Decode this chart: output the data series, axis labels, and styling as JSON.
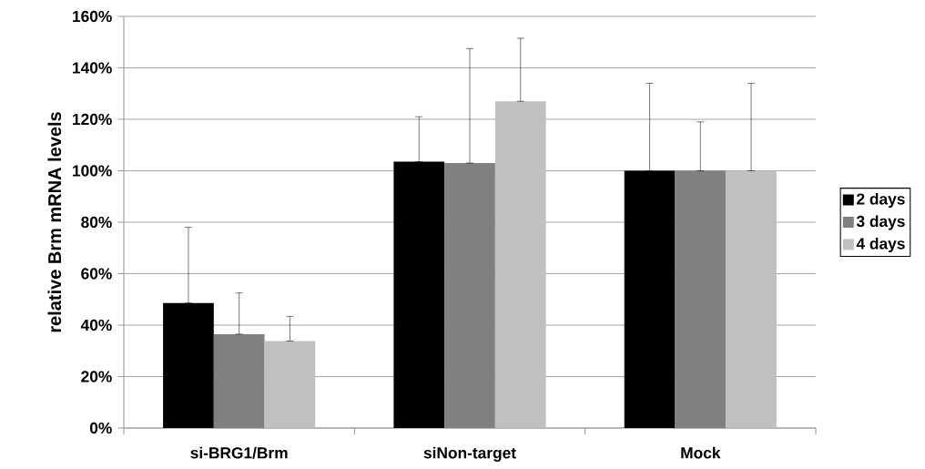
{
  "chart_data": {
    "type": "bar",
    "ylabel": "relative Brm mRNA levels",
    "categories": [
      "si-BRG1/Brm",
      "siNon-target",
      "Mock"
    ],
    "series": [
      {
        "name": "2 days",
        "color": "#000000",
        "values": [
          48.6,
          103.5,
          100
        ],
        "errors": [
          [
            48.6,
            78
          ],
          [
            103.5,
            121
          ],
          [
            100,
            134
          ]
        ]
      },
      {
        "name": "3 days",
        "color": "#808080",
        "values": [
          36.5,
          103,
          100
        ],
        "errors": [
          [
            36.5,
            52.5
          ],
          [
            103,
            147.5
          ],
          [
            100,
            119
          ]
        ]
      },
      {
        "name": "4 days",
        "color": "#c0c0c0",
        "values": [
          33.8,
          127,
          100
        ],
        "errors": [
          [
            33.8,
            43.4
          ],
          [
            127,
            151.5
          ],
          [
            100,
            134
          ]
        ]
      }
    ],
    "ylim": [
      0,
      160
    ],
    "yticks": [
      {
        "value": 0,
        "label": "0%"
      },
      {
        "value": 20,
        "label": "20%"
      },
      {
        "value": 40,
        "label": "40%"
      },
      {
        "value": 60,
        "label": "60%"
      },
      {
        "value": 80,
        "label": "80%"
      },
      {
        "value": 100,
        "label": "100%"
      },
      {
        "value": 120,
        "label": "120%"
      },
      {
        "value": 140,
        "label": "140%"
      },
      {
        "value": 160,
        "label": "160%"
      }
    ],
    "grid": "y",
    "legend": "right"
  }
}
